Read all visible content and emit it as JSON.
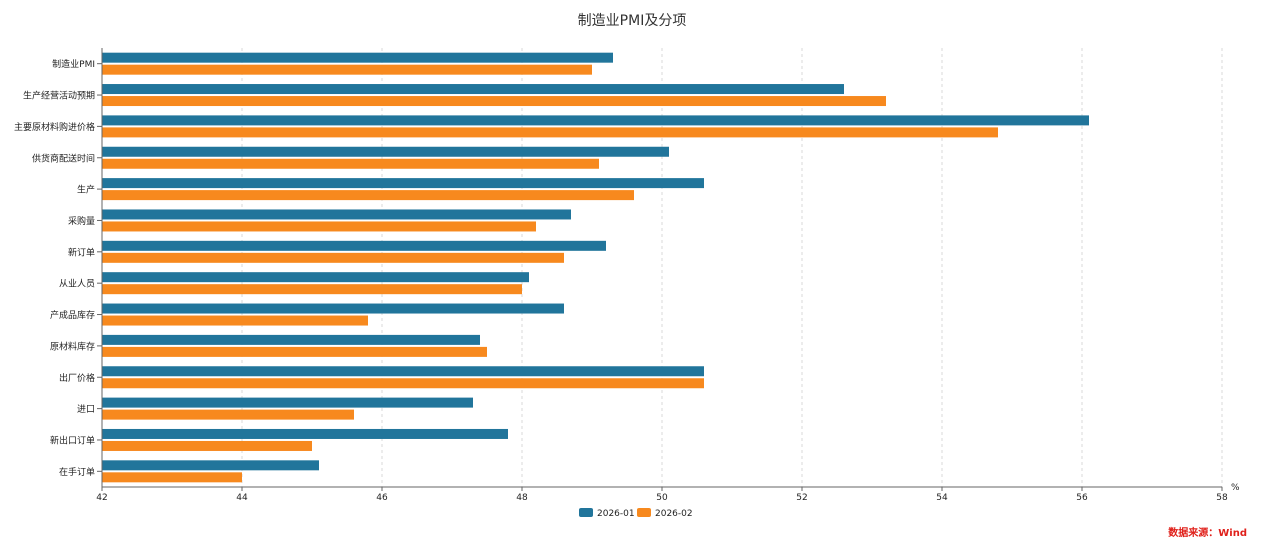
{
  "chart_data": {
    "type": "bar",
    "orientation": "horizontal",
    "title": "制造业PMI及分项",
    "xlabel": "",
    "ylabel": "",
    "unit_label": "%",
    "xlim": [
      42,
      58
    ],
    "xticks": [
      42,
      44,
      46,
      48,
      50,
      52,
      54,
      56,
      58
    ],
    "grid": true,
    "legend_position": "bottom-center",
    "categories": [
      "制造业PMI",
      "生产经营活动预期",
      "主要原材料购进价格",
      "供货商配送时间",
      "生产",
      "采购量",
      "新订单",
      "从业人员",
      "产成品库存",
      "原材料库存",
      "出厂价格",
      "进口",
      "新出口订单",
      "在手订单"
    ],
    "series": [
      {
        "name": "2026-01",
        "color": "#21759b",
        "values": [
          49.3,
          52.6,
          56.1,
          50.1,
          50.6,
          48.7,
          49.2,
          48.1,
          48.6,
          47.4,
          50.6,
          47.3,
          47.8,
          45.1
        ]
      },
      {
        "name": "2026-02",
        "color": "#f7891e",
        "values": [
          49.0,
          53.2,
          54.8,
          49.1,
          49.6,
          48.2,
          48.6,
          48.0,
          45.8,
          47.5,
          50.6,
          45.6,
          45.0,
          44.0
        ]
      }
    ]
  },
  "source_note": "数据来源：Wind"
}
